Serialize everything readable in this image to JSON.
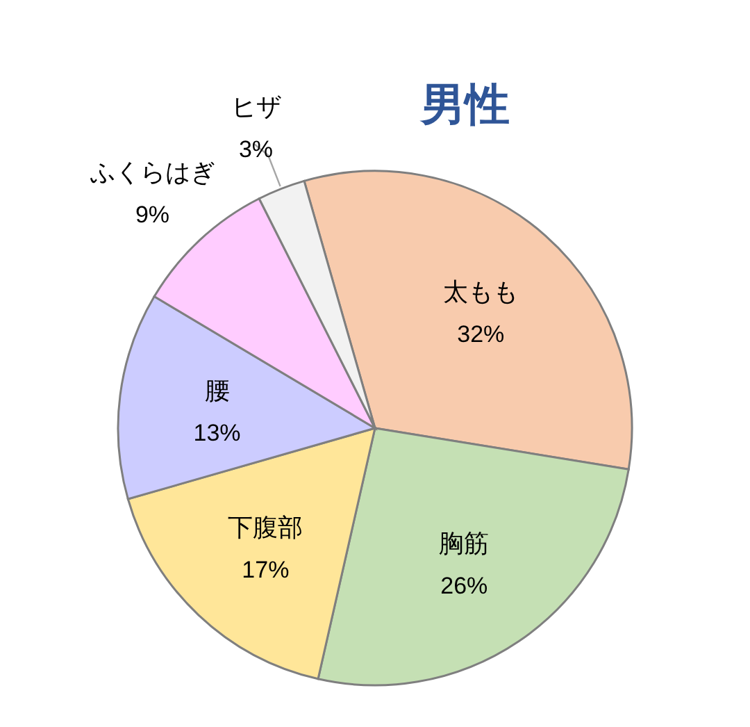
{
  "chart_data": {
    "type": "pie",
    "title": "男性",
    "categories": [
      "太もも",
      "胸筋",
      "下腹部",
      "腰",
      "ふくらはぎ",
      "ヒザ"
    ],
    "values": [
      32,
      26,
      17,
      13,
      9,
      3
    ],
    "colors": [
      "#f8cbad",
      "#c5e0b4",
      "#ffe699",
      "#ccccff",
      "#ffccff",
      "#f2f2f2"
    ],
    "value_labels": [
      "32%",
      "26%",
      "17%",
      "13%",
      "9%",
      "3%"
    ]
  }
}
